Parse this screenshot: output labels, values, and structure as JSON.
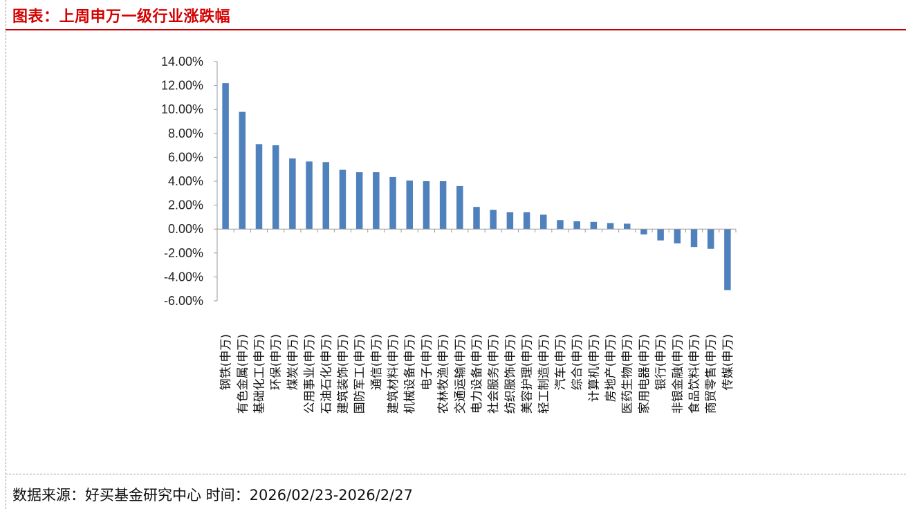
{
  "header": {
    "title": "图表：上周申万一级行业涨跌幅"
  },
  "footer": {
    "source": "数据来源：好买基金研究中心 时间：2026/02/23-2026/2/27"
  },
  "colors": {
    "title": "#d40000",
    "rule": "#c00000",
    "bar": "#4f81bd",
    "axis": "#999999"
  },
  "chart_data": {
    "type": "bar",
    "title": "",
    "xlabel": "",
    "ylabel": "",
    "ylim": [
      -6,
      14
    ],
    "y_ticks": [
      "14.00%",
      "12.00%",
      "10.00%",
      "8.00%",
      "6.00%",
      "4.00%",
      "2.00%",
      "0.00%",
      "-2.00%",
      "-4.00%",
      "-6.00%"
    ],
    "grid": false,
    "legend": "none",
    "categories": [
      "钢铁(申万)",
      "有色金属(申万)",
      "基础化工(申万)",
      "环保(申万)",
      "煤炭(申万)",
      "公用事业(申万)",
      "石油石化(申万)",
      "建筑装饰(申万)",
      "国防军工(申万)",
      "通信(申万)",
      "建筑材料(申万)",
      "机械设备(申万)",
      "电子(申万)",
      "农林牧渔(申万)",
      "交通运输(申万)",
      "电力设备(申万)",
      "社会服务(申万)",
      "纺织服饰(申万)",
      "美容护理(申万)",
      "轻工制造(申万)",
      "汽车(申万)",
      "综合(申万)",
      "计算机(申万)",
      "房地产(申万)",
      "医药生物(申万)",
      "家用电器(申万)",
      "银行(申万)",
      "非银金融(申万)",
      "食品饮料(申万)",
      "商贸零售(申万)",
      "传媒(申万)"
    ],
    "values": [
      12.2,
      9.8,
      7.1,
      7.0,
      5.9,
      5.65,
      5.6,
      4.95,
      4.75,
      4.75,
      4.35,
      4.05,
      4.0,
      4.0,
      3.6,
      1.85,
      1.6,
      1.4,
      1.4,
      1.2,
      0.75,
      0.65,
      0.6,
      0.5,
      0.45,
      -0.45,
      -0.95,
      -1.2,
      -1.5,
      -1.65,
      -5.1
    ]
  }
}
